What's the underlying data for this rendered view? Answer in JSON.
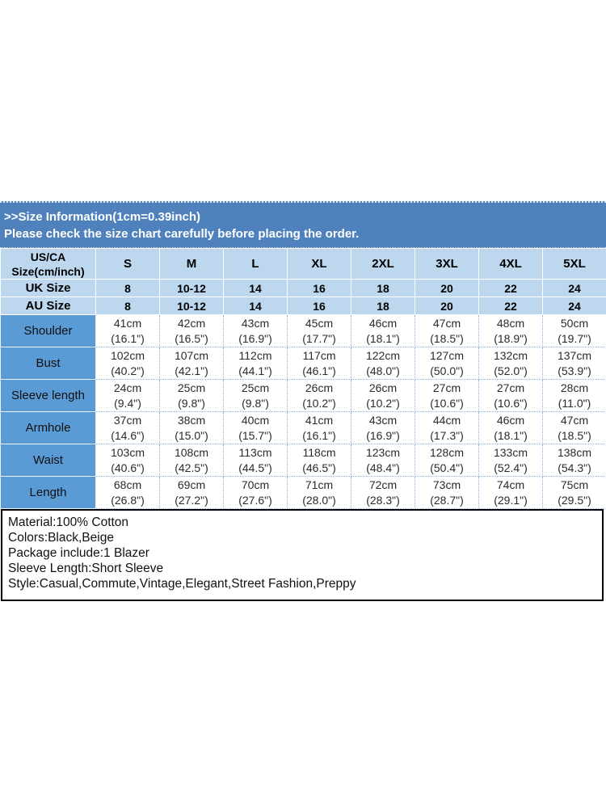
{
  "header": {
    "line1": ">>Size Information(1cm=0.39inch)",
    "line2": "Please check the size chart carefully before placing the order."
  },
  "table": {
    "corner_label_lines": [
      "US/CA",
      "Size(cm/inch)"
    ],
    "size_columns": [
      "S",
      "M",
      "L",
      "XL",
      "2XL",
      "3XL",
      "4XL",
      "5XL"
    ],
    "uk_row": {
      "label": "UK Size",
      "values": [
        "8",
        "10-12",
        "14",
        "16",
        "18",
        "20",
        "22",
        "24"
      ]
    },
    "au_row": {
      "label": "AU Size",
      "values": [
        "8",
        "10-12",
        "14",
        "16",
        "18",
        "20",
        "22",
        "24"
      ]
    },
    "measurement_rows": [
      {
        "label": "Shoulder",
        "cm": [
          "41cm",
          "42cm",
          "43cm",
          "45cm",
          "46cm",
          "47cm",
          "48cm",
          "50cm"
        ],
        "inch": [
          "(16.1\")",
          "(16.5\")",
          "(16.9\")",
          "(17.7\")",
          "(18.1\")",
          "(18.5\")",
          "(18.9\")",
          "(19.7\")"
        ]
      },
      {
        "label": "Bust",
        "cm": [
          "102cm",
          "107cm",
          "112cm",
          "117cm",
          "122cm",
          "127cm",
          "132cm",
          "137cm"
        ],
        "inch": [
          "(40.2\")",
          "(42.1\")",
          "(44.1\")",
          "(46.1\")",
          "(48.0\")",
          "(50.0\")",
          "(52.0\")",
          "(53.9\")"
        ]
      },
      {
        "label": "Sleeve length",
        "cm": [
          "24cm",
          "25cm",
          "25cm",
          "26cm",
          "26cm",
          "27cm",
          "27cm",
          "28cm"
        ],
        "inch": [
          "(9.4\")",
          "(9.8\")",
          "(9.8\")",
          "(10.2\")",
          "(10.2\")",
          "(10.6\")",
          "(10.6\")",
          "(11.0\")"
        ]
      },
      {
        "label": "Armhole",
        "cm": [
          "37cm",
          "38cm",
          "40cm",
          "41cm",
          "43cm",
          "44cm",
          "46cm",
          "47cm"
        ],
        "inch": [
          "(14.6\")",
          "(15.0\")",
          "(15.7\")",
          "(16.1\")",
          "(16.9\")",
          "(17.3\")",
          "(18.1\")",
          "(18.5\")"
        ]
      },
      {
        "label": "Waist",
        "cm": [
          "103cm",
          "108cm",
          "113cm",
          "118cm",
          "123cm",
          "128cm",
          "133cm",
          "138cm"
        ],
        "inch": [
          "(40.6\")",
          "(42.5\")",
          "(44.5\")",
          "(46.5\")",
          "(48.4\")",
          "(50.4\")",
          "(52.4\")",
          "(54.3\")"
        ]
      },
      {
        "label": "Length",
        "cm": [
          "68cm",
          "69cm",
          "70cm",
          "71cm",
          "72cm",
          "73cm",
          "74cm",
          "75cm"
        ],
        "inch": [
          "(26.8\")",
          "(27.2\")",
          "(27.6\")",
          "(28.0\")",
          "(28.3\")",
          "(28.7\")",
          "(29.1\")",
          "(29.5\")"
        ]
      }
    ]
  },
  "footer": {
    "lines": [
      "Material:100% Cotton",
      "Colors:Black,Beige",
      "Package include:1 Blazer",
      "Sleeve Length:Short Sleeve",
      "Style:Casual,Commute,Vintage,Elegant,Street Fashion,Preppy"
    ]
  },
  "colors": {
    "band_blue": "#4f81bd",
    "label_blue": "#5b9bd5",
    "light_blue": "#bdd7ee",
    "grid_dotted_blue": "#8db4e2",
    "details_border": "#000000",
    "band_text": "#ffffff",
    "cell_text": "#2b2b2b"
  }
}
